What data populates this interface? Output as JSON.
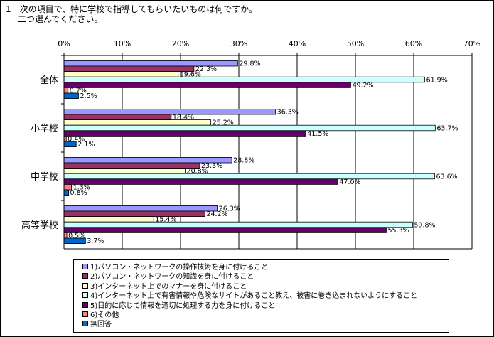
{
  "question": {
    "line1": "1　次の項目で、特に学校で指導してもらいたいものは何ですか。",
    "line2": "二つ選んでください。"
  },
  "chart_data": {
    "type": "bar",
    "orientation": "horizontal",
    "categories": [
      "全体",
      "小学校",
      "中学校",
      "高等学校"
    ],
    "xlim": [
      0,
      70
    ],
    "xticks": [
      "0%",
      "10%",
      "20%",
      "30%",
      "40%",
      "50%",
      "60%",
      "70%"
    ],
    "grid": true,
    "legend_position": "bottom",
    "series": [
      {
        "name": "1)パソコン・ネットワークの操作技術を身に付けること",
        "color": "#9999ff",
        "values": [
          29.8,
          36.3,
          28.8,
          26.3
        ],
        "labels": [
          "29.8%",
          "36.3%",
          "28.8%",
          "26.3%"
        ]
      },
      {
        "name": "2)パソコン・ネットワークの知識を身に付けること",
        "color": "#993366",
        "values": [
          22.3,
          18.4,
          23.3,
          24.2
        ],
        "labels": [
          "22.3%",
          "18.4%",
          "23.3%",
          "24.2%"
        ]
      },
      {
        "name": "3)インターネット上でのマナーを身に付けること",
        "color": "#ffffcc",
        "values": [
          19.6,
          25.2,
          20.8,
          15.4
        ],
        "labels": [
          "19.6%",
          "25.2%",
          "20.8%",
          "15.4%"
        ]
      },
      {
        "name": "4)インターネット上で有害情報や危険なサイトがあること教え、被害に巻き込まれないようにすること",
        "color": "#ccffff",
        "values": [
          61.9,
          63.7,
          63.6,
          59.8
        ],
        "labels": [
          "61.9%",
          "63.7%",
          "63.6%",
          "59.8%"
        ]
      },
      {
        "name": "5)目的に応じて情報を適切に処理する力を身に付けること",
        "color": "#660066",
        "values": [
          49.2,
          41.5,
          47.0,
          55.3
        ],
        "labels": [
          "49.2%",
          "41.5%",
          "47.0%",
          "55.3%"
        ]
      },
      {
        "name": "6)その他",
        "color": "#ff8080",
        "values": [
          0.7,
          0.4,
          1.3,
          0.5
        ],
        "labels": [
          "0.7%",
          "0.4%",
          "1.3%",
          "0.5%"
        ]
      },
      {
        "name": "無回答",
        "color": "#0066cc",
        "values": [
          2.5,
          2.1,
          0.8,
          3.7
        ],
        "labels": [
          "2.5%",
          "2.1%",
          "0.8%",
          "3.7%"
        ]
      }
    ]
  }
}
